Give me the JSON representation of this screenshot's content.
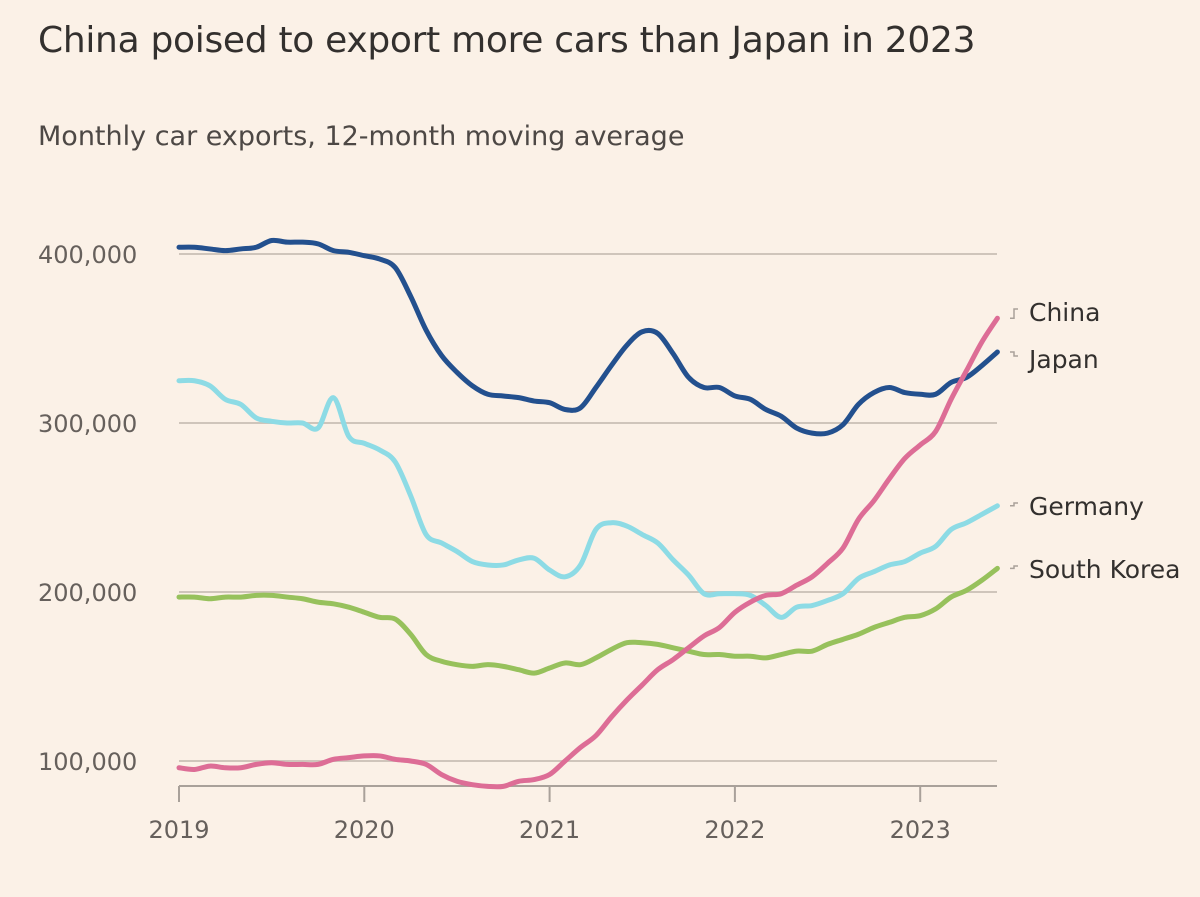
{
  "chart_data": {
    "type": "line",
    "title": "China poised to export more cars than Japan in 2023",
    "subtitle": "Monthly car exports, 12-month moving average",
    "xlabel": "",
    "ylabel": "",
    "x_start": "2019-01",
    "x_end": "2023-06",
    "x_frequency": "monthly",
    "x_ticks": [
      "2019",
      "2020",
      "2021",
      "2022",
      "2023"
    ],
    "y_ticks": [
      "100,000",
      "200,000",
      "300,000",
      "400,000"
    ],
    "y_tick_values": [
      100000,
      200000,
      300000,
      400000
    ],
    "ylim": [
      85000,
      430000
    ],
    "grid": "horizontal",
    "legend": "direct labels at right end of lines",
    "series": [
      {
        "name": "China",
        "color": "#dd6d96",
        "values": [
          96000,
          95000,
          97000,
          96000,
          96000,
          98000,
          99000,
          98000,
          98000,
          98000,
          101000,
          102000,
          103000,
          103000,
          101000,
          100000,
          98000,
          92000,
          88000,
          86000,
          85000,
          85000,
          88000,
          89000,
          92000,
          100000,
          108000,
          115000,
          126000,
          136000,
          145000,
          154000,
          160000,
          167000,
          174000,
          179000,
          188000,
          194000,
          198000,
          199000,
          204000,
          209000,
          217000,
          226000,
          243000,
          254000,
          267000,
          279000,
          287000,
          295000,
          314000,
          331000,
          348000,
          362000
        ]
      },
      {
        "name": "Japan",
        "color": "#23508e",
        "values": [
          404000,
          404000,
          403000,
          402000,
          403000,
          404000,
          408000,
          407000,
          407000,
          406000,
          402000,
          401000,
          399000,
          397000,
          392000,
          375000,
          355000,
          340000,
          330000,
          322000,
          317000,
          316000,
          315000,
          313000,
          312000,
          308000,
          309000,
          321000,
          334000,
          346000,
          354000,
          353000,
          341000,
          327000,
          321000,
          321000,
          316000,
          314000,
          308000,
          304000,
          297000,
          294000,
          294000,
          299000,
          311000,
          318000,
          321000,
          318000,
          317000,
          317000,
          324000,
          327000,
          334000,
          342000
        ]
      },
      {
        "name": "Germany",
        "color": "#8ddbe5",
        "values": [
          325000,
          325000,
          322000,
          314000,
          311000,
          303000,
          301000,
          300000,
          300000,
          297000,
          315000,
          292000,
          288000,
          284000,
          277000,
          257000,
          234000,
          229000,
          224000,
          218000,
          216000,
          216000,
          219000,
          220000,
          213000,
          209000,
          216000,
          237000,
          241000,
          239000,
          234000,
          229000,
          219000,
          210000,
          199000,
          199000,
          199000,
          198000,
          192000,
          185000,
          191000,
          192000,
          195000,
          199000,
          208000,
          212000,
          216000,
          218000,
          223000,
          227000,
          237000,
          241000,
          246000,
          251000
        ]
      },
      {
        "name": "South Korea",
        "color": "#97c15c",
        "values": [
          197000,
          197000,
          196000,
          197000,
          197000,
          198000,
          198000,
          197000,
          196000,
          194000,
          193000,
          191000,
          188000,
          185000,
          184000,
          175000,
          163000,
          159000,
          157000,
          156000,
          157000,
          156000,
          154000,
          152000,
          155000,
          158000,
          157000,
          161000,
          166000,
          170000,
          170000,
          169000,
          167000,
          165000,
          163000,
          163000,
          162000,
          162000,
          161000,
          163000,
          165000,
          165000,
          169000,
          172000,
          175000,
          179000,
          182000,
          185000,
          186000,
          190000,
          197000,
          201000,
          207000,
          214000
        ]
      }
    ]
  }
}
